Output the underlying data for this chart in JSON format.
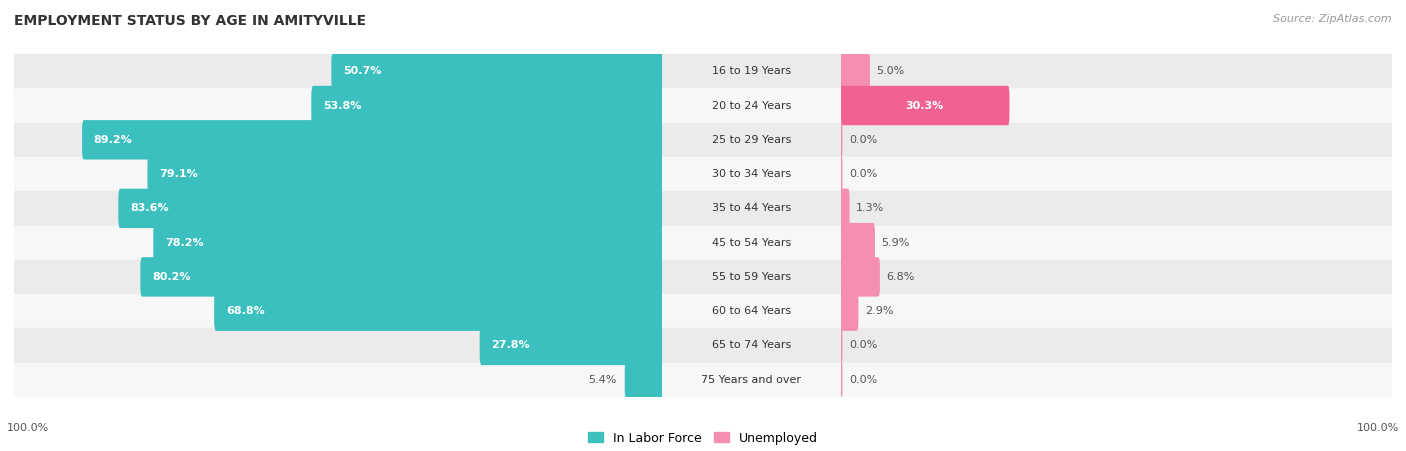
{
  "title": "EMPLOYMENT STATUS BY AGE IN AMITYVILLE",
  "source": "Source: ZipAtlas.com",
  "categories": [
    "16 to 19 Years",
    "20 to 24 Years",
    "25 to 29 Years",
    "30 to 34 Years",
    "35 to 44 Years",
    "45 to 54 Years",
    "55 to 59 Years",
    "60 to 64 Years",
    "65 to 74 Years",
    "75 Years and over"
  ],
  "labor_force": [
    50.7,
    53.8,
    89.2,
    79.1,
    83.6,
    78.2,
    80.2,
    68.8,
    27.8,
    5.4
  ],
  "unemployed": [
    5.0,
    30.3,
    0.0,
    0.0,
    1.3,
    5.9,
    6.8,
    2.9,
    0.0,
    0.0
  ],
  "labor_force_color": "#3bbfbf",
  "unemployed_color": "#f48fb1",
  "unemployed_color_bright": "#f06292",
  "row_bg_even": "#ebebeb",
  "row_bg_odd": "#f7f7f7",
  "label_color_inside": "#ffffff",
  "label_color_outside": "#555555",
  "title_fontsize": 10,
  "source_fontsize": 8,
  "label_fontsize": 8,
  "category_fontsize": 8,
  "axis_label_fontsize": 8,
  "legend_fontsize": 9,
  "max_val": 100.0,
  "fig_bg": "#ffffff",
  "bar_height": 0.55,
  "inside_label_threshold_lf": 15,
  "inside_label_threshold_un": 15
}
